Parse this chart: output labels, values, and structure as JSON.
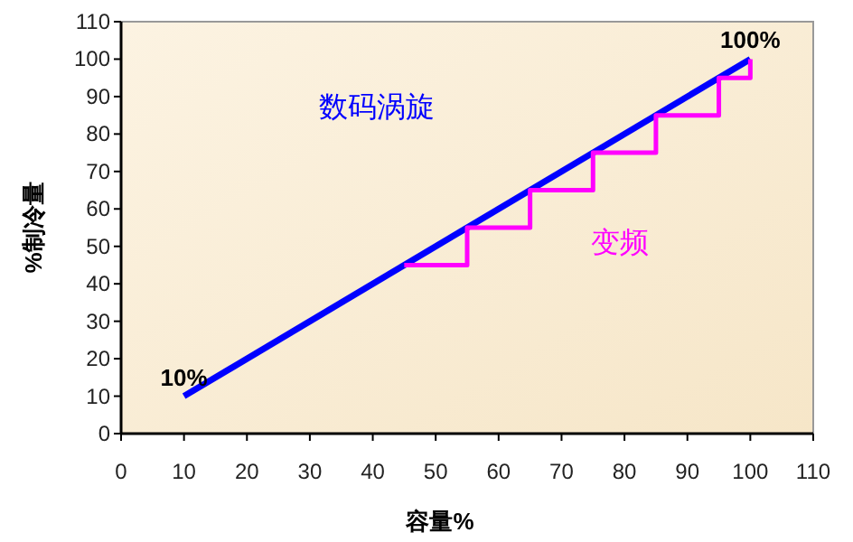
{
  "chart_data": {
    "type": "line",
    "xlabel": "容量%",
    "ylabel": "%制冷量",
    "xlim": [
      0,
      110
    ],
    "ylim": [
      0,
      110
    ],
    "xticks": [
      0,
      10,
      20,
      30,
      40,
      50,
      60,
      70,
      80,
      90,
      100,
      110
    ],
    "yticks": [
      0,
      10,
      20,
      30,
      40,
      50,
      60,
      70,
      80,
      90,
      100,
      110
    ],
    "grid": false,
    "series": [
      {
        "name": "数码涡旋",
        "color": "#0000ff",
        "x": [
          10,
          100
        ],
        "values": [
          10,
          100
        ]
      },
      {
        "name": "变频",
        "type": "step",
        "color": "#ff00ff",
        "x": [
          45,
          55,
          65,
          75,
          85,
          95,
          100
        ],
        "values": [
          45,
          55,
          65,
          75,
          85,
          95,
          100
        ]
      }
    ],
    "annotations": [
      {
        "text": "10%",
        "x": 10,
        "y": 10
      },
      {
        "text": "100%",
        "x": 100,
        "y": 100
      }
    ]
  }
}
